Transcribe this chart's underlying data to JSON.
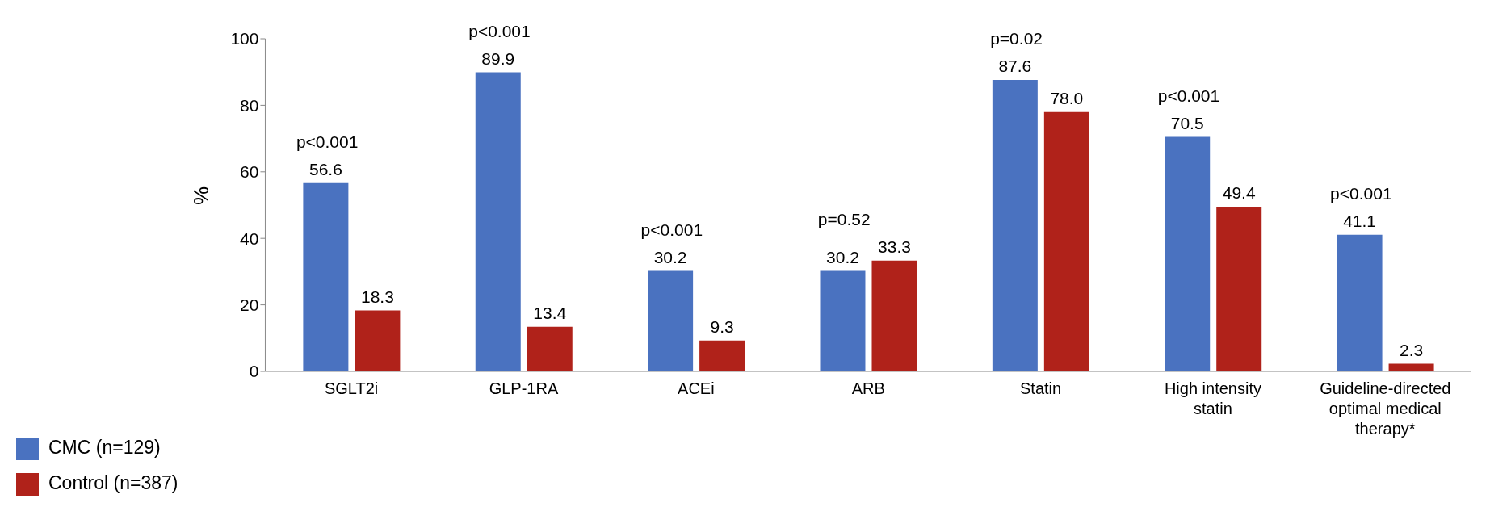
{
  "chart_data": {
    "type": "bar",
    "ylabel": "%",
    "categories": [
      "SGLT2i",
      "GLP-1RA",
      "ACEi",
      "ARB",
      "Statin",
      "High intensity statin",
      "Guideline-directed optimal medical therapy*"
    ],
    "series": [
      {
        "name": "CMC (n=129)",
        "color": "#4a72c0",
        "values": [
          56.6,
          89.9,
          30.2,
          30.2,
          87.6,
          70.5,
          41.1
        ],
        "value_labels": [
          "56.6",
          "89.9",
          "30.2",
          "30.2",
          "87.6",
          "70.5",
          "41.1"
        ]
      },
      {
        "name": "Control (n=387)",
        "color": "#b0221a",
        "values": [
          18.3,
          13.4,
          9.3,
          33.3,
          78.0,
          49.4,
          2.3
        ],
        "value_labels": [
          "18.3",
          "13.4",
          "9.3",
          "33.3",
          "78.0",
          "49.4",
          "2.3"
        ]
      }
    ],
    "ylim": [
      0,
      100
    ],
    "yticks": [
      0,
      20,
      40,
      60,
      80,
      100
    ],
    "legend": "bottom left",
    "annotations": [
      {
        "text": "p<0.001",
        "x": "SGLT2i",
        "y": 56.6
      },
      {
        "text": "p<0.001",
        "x": "GLP-1RA",
        "y": 89.9
      },
      {
        "text": "p<0.001",
        "x": "ACEi",
        "y": 30.2
      },
      {
        "text": "p=0.52",
        "x": "ARB",
        "y": 33.3
      },
      {
        "text": "p=0.02",
        "x": "Statin",
        "y": 87.6
      },
      {
        "text": "p<0.001",
        "x": "High intensity statin",
        "y": 70.5
      },
      {
        "text": "p<0.001",
        "x": "Guideline-directed optimal medical therapy*",
        "y": 41.1
      }
    ]
  }
}
